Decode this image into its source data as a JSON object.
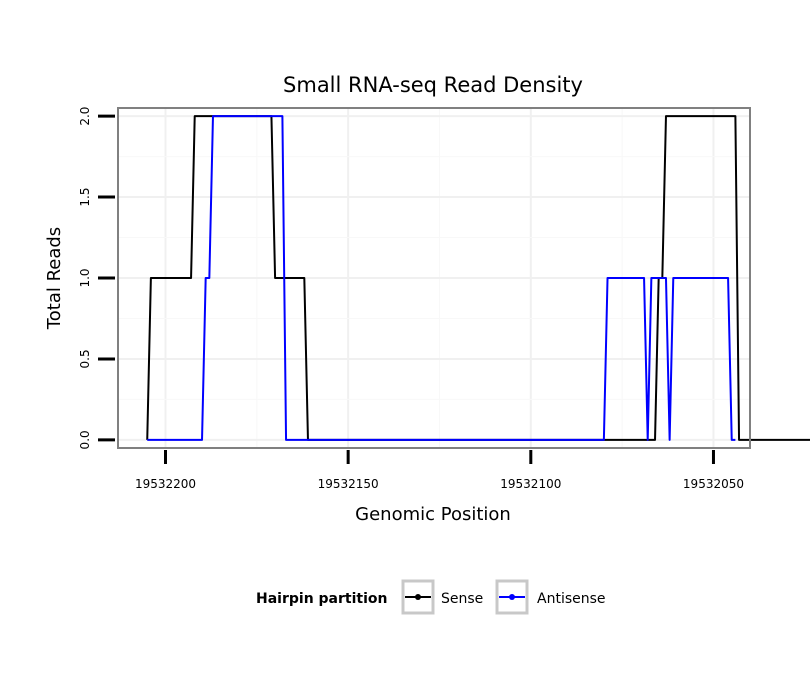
{
  "chart_data": {
    "type": "line",
    "title": "Small RNA-seq Read Density",
    "xlabel": "Genomic Position",
    "ylabel": "Total Reads",
    "xlim": [
      19532213,
      19532040
    ],
    "ylim": [
      -0.05,
      2.05
    ],
    "x_reversed": true,
    "x_ticks": [
      19532200,
      19532150,
      19532100,
      19532050
    ],
    "x_tick_labels": [
      "19532200",
      "19532150",
      "19532100",
      "19532050"
    ],
    "y_ticks": [
      0,
      0.5,
      1,
      1.5,
      2
    ],
    "y_tick_labels": [
      "0.0",
      "0.5",
      "1.0",
      "1.5",
      "2.0"
    ],
    "grid": true,
    "legend": {
      "title": "Hairpin partition",
      "position": "bottom"
    },
    "series": [
      {
        "name": "Sense",
        "color": "#000000",
        "x": [
          19532205,
          19532204,
          19532193,
          19532192,
          19532171,
          19532170,
          19532162,
          19532161,
          19532066,
          19532065,
          19532064,
          19532063,
          19532044,
          19532043,
          19532022
        ],
        "y": [
          0,
          1,
          1,
          2,
          2,
          1,
          1,
          0,
          0,
          1,
          1,
          2,
          2,
          0,
          0
        ]
      },
      {
        "name": "Antisense",
        "color": "#0000ff",
        "x": [
          19532205,
          19532190,
          19532189,
          19532188,
          19532187,
          19532168,
          19532167,
          19532080,
          19532079,
          19532069,
          19532068,
          19532067,
          19532063,
          19532062,
          19532061,
          19532046,
          19532045,
          19532044
        ],
        "y": [
          0,
          0,
          1,
          1,
          2,
          2,
          0,
          0,
          1,
          1,
          0,
          1,
          1,
          0,
          1,
          1,
          0,
          0
        ]
      }
    ]
  }
}
